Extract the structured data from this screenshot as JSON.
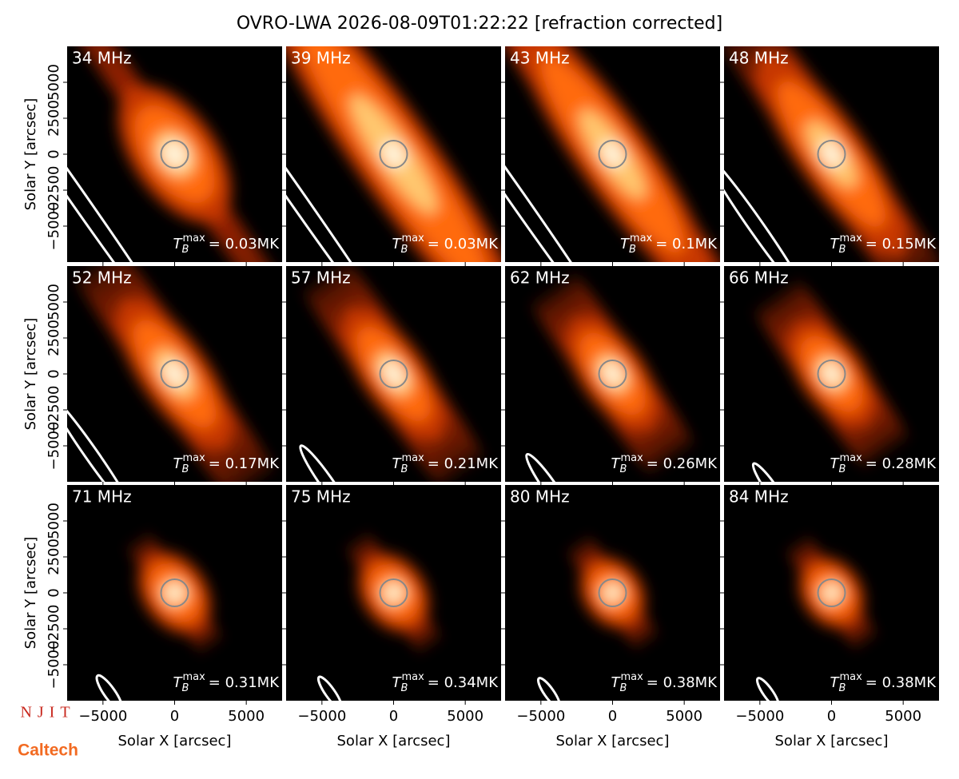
{
  "title": "OVRO-LWA 2026-08-09T01:22:22 [refraction corrected]",
  "logos": [
    "NJIT",
    "Caltech"
  ],
  "chart_data": [
    {
      "type": "image",
      "label": "34 MHz",
      "tb_max": {
        "symbol": "T",
        "subscript": "B",
        "superscript": "max",
        "text": "= 0.03MK"
      },
      "ylabel": "Solar Y [arcsec]",
      "xlim": [
        -7500,
        7500
      ],
      "ylim": [
        -7500,
        7500
      ],
      "xticks": [
        {
          "value": -5000,
          "label": "−5000"
        },
        0,
        5000
      ],
      "yticks": [
        {
          "value": -5000,
          "label": "−5000"
        },
        {
          "value": -2500,
          "label": "−2500"
        },
        0,
        2500,
        5000
      ]
    },
    {
      "type": "image",
      "label": "39 MHz",
      "tb_max": {
        "symbol": "T",
        "subscript": "B",
        "superscript": "max",
        "text": "= 0.03MK"
      },
      "xlim": [
        -7500,
        7500
      ],
      "ylim": [
        -7500,
        7500
      ],
      "xticks": [
        {
          "value": -5000,
          "label": "−5000"
        },
        0,
        5000
      ],
      "yticks": [
        {
          "value": -5000,
          "label": "−5000"
        },
        {
          "value": -2500,
          "label": "−2500"
        },
        0,
        2500,
        5000
      ]
    },
    {
      "type": "image",
      "label": "43 MHz",
      "tb_max": {
        "symbol": "T",
        "subscript": "B",
        "superscript": "max",
        "text": "= 0.1MK"
      },
      "xlim": [
        -7500,
        7500
      ],
      "ylim": [
        -7500,
        7500
      ],
      "xticks": [
        {
          "value": -5000,
          "label": "−5000"
        },
        0,
        5000
      ],
      "yticks": [
        {
          "value": -5000,
          "label": "−5000"
        },
        {
          "value": -2500,
          "label": "−2500"
        },
        0,
        2500,
        5000
      ]
    },
    {
      "type": "image",
      "label": "48 MHz",
      "tb_max": {
        "symbol": "T",
        "subscript": "B",
        "superscript": "max",
        "text": "= 0.15MK"
      },
      "xlim": [
        -7500,
        7500
      ],
      "ylim": [
        -7500,
        7500
      ],
      "xticks": [
        {
          "value": -5000,
          "label": "−5000"
        },
        0,
        5000
      ],
      "yticks": [
        {
          "value": -5000,
          "label": "−5000"
        },
        {
          "value": -2500,
          "label": "−2500"
        },
        0,
        2500,
        5000
      ]
    },
    {
      "type": "image",
      "label": "52 MHz",
      "tb_max": {
        "symbol": "T",
        "subscript": "B",
        "superscript": "max",
        "text": "= 0.17MK"
      },
      "ylabel": "Solar Y [arcsec]",
      "xlim": [
        -7500,
        7500
      ],
      "ylim": [
        -7500,
        7500
      ],
      "xticks": [
        {
          "value": -5000,
          "label": "−5000"
        },
        0,
        5000
      ],
      "yticks": [
        {
          "value": -5000,
          "label": "−5000"
        },
        {
          "value": -2500,
          "label": "−2500"
        },
        0,
        2500,
        5000
      ]
    },
    {
      "type": "image",
      "label": "57 MHz",
      "tb_max": {
        "symbol": "T",
        "subscript": "B",
        "superscript": "max",
        "text": "= 0.21MK"
      },
      "xlim": [
        -7500,
        7500
      ],
      "ylim": [
        -7500,
        7500
      ],
      "xticks": [
        {
          "value": -5000,
          "label": "−5000"
        },
        0,
        5000
      ],
      "yticks": [
        {
          "value": -5000,
          "label": "−5000"
        },
        {
          "value": -2500,
          "label": "−2500"
        },
        0,
        2500,
        5000
      ]
    },
    {
      "type": "image",
      "label": "62 MHz",
      "tb_max": {
        "symbol": "T",
        "subscript": "B",
        "superscript": "max",
        "text": "= 0.26MK"
      },
      "xlim": [
        -7500,
        7500
      ],
      "ylim": [
        -7500,
        7500
      ],
      "xticks": [
        {
          "value": -5000,
          "label": "−5000"
        },
        0,
        5000
      ],
      "yticks": [
        {
          "value": -5000,
          "label": "−5000"
        },
        {
          "value": -2500,
          "label": "−2500"
        },
        0,
        2500,
        5000
      ]
    },
    {
      "type": "image",
      "label": "66 MHz",
      "tb_max": {
        "symbol": "T",
        "subscript": "B",
        "superscript": "max",
        "text": "= 0.28MK"
      },
      "xlim": [
        -7500,
        7500
      ],
      "ylim": [
        -7500,
        7500
      ],
      "xticks": [
        {
          "value": -5000,
          "label": "−5000"
        },
        0,
        5000
      ],
      "yticks": [
        {
          "value": -5000,
          "label": "−5000"
        },
        {
          "value": -2500,
          "label": "−2500"
        },
        0,
        2500,
        5000
      ]
    },
    {
      "type": "image",
      "label": "71 MHz",
      "tb_max": {
        "symbol": "T",
        "subscript": "B",
        "superscript": "max",
        "text": "= 0.31MK"
      },
      "xlabel": "Solar X [arcsec]",
      "ylabel": "Solar Y [arcsec]",
      "xlim": [
        -7500,
        7500
      ],
      "ylim": [
        -7500,
        7500
      ],
      "xticks": [
        {
          "value": -5000,
          "label": "−5000"
        },
        0,
        5000
      ],
      "yticks": [
        {
          "value": -5000,
          "label": "−5000"
        },
        {
          "value": -2500,
          "label": "−2500"
        },
        0,
        2500,
        5000
      ]
    },
    {
      "type": "image",
      "label": "75 MHz",
      "tb_max": {
        "symbol": "T",
        "subscript": "B",
        "superscript": "max",
        "text": "= 0.34MK"
      },
      "xlabel": "Solar X [arcsec]",
      "xlim": [
        -7500,
        7500
      ],
      "ylim": [
        -7500,
        7500
      ],
      "xticks": [
        {
          "value": -5000,
          "label": "−5000"
        },
        0,
        5000
      ],
      "yticks": [
        {
          "value": -5000,
          "label": "−5000"
        },
        {
          "value": -2500,
          "label": "−2500"
        },
        0,
        2500,
        5000
      ]
    },
    {
      "type": "image",
      "label": "80 MHz",
      "tb_max": {
        "symbol": "T",
        "subscript": "B",
        "superscript": "max",
        "text": "= 0.38MK"
      },
      "xlabel": "Solar X [arcsec]",
      "xlim": [
        -7500,
        7500
      ],
      "ylim": [
        -7500,
        7500
      ],
      "xticks": [
        {
          "value": -5000,
          "label": "−5000"
        },
        0,
        5000
      ],
      "yticks": [
        {
          "value": -5000,
          "label": "−5000"
        },
        {
          "value": -2500,
          "label": "−2500"
        },
        0,
        2500,
        5000
      ]
    },
    {
      "type": "image",
      "label": "84 MHz",
      "tb_max": {
        "symbol": "T",
        "subscript": "B",
        "superscript": "max",
        "text": "= 0.38MK"
      },
      "xlabel": "Solar X [arcsec]",
      "xlim": [
        -7500,
        7500
      ],
      "ylim": [
        -7500,
        7500
      ],
      "xticks": [
        {
          "value": -5000,
          "label": "−5000"
        },
        0,
        5000
      ],
      "yticks": [
        {
          "value": -5000,
          "label": "−5000"
        },
        {
          "value": -2500,
          "label": "−2500"
        },
        0,
        2500,
        5000
      ]
    }
  ]
}
